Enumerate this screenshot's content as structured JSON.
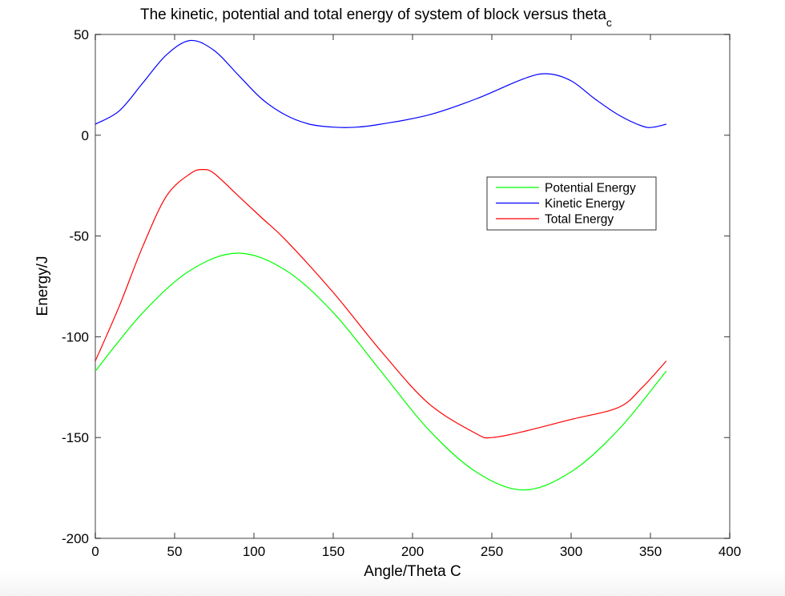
{
  "chart_data": {
    "type": "line",
    "title": "The kinetic, potential and total energy of system of block versus theta",
    "title_subscript": "c",
    "xlabel": "Angle/Theta C",
    "ylabel": "Energy/J",
    "xlim": [
      0,
      400
    ],
    "ylim": [
      -200,
      50
    ],
    "xticks": [
      0,
      50,
      100,
      150,
      200,
      250,
      300,
      350,
      400
    ],
    "yticks": [
      50,
      0,
      -50,
      -100,
      -150,
      -200
    ],
    "grid": false,
    "legend_position": "upper right (inside axes)",
    "series": [
      {
        "name": "Potential Energy",
        "color": "#00ff00",
        "x": [
          0,
          30,
          60,
          90,
          120,
          150,
          180,
          210,
          240,
          270,
          300,
          330,
          360
        ],
        "y": [
          -117,
          -88,
          -67,
          -58.5,
          -67,
          -88,
          -117,
          -146,
          -167,
          -176,
          -167,
          -146,
          -117
        ]
      },
      {
        "name": "Kinetic Energy",
        "color": "#0000ff",
        "x": [
          0,
          15,
          30,
          45,
          60,
          75,
          90,
          105,
          120,
          135,
          150,
          165,
          180,
          210,
          240,
          270,
          285,
          300,
          315,
          330,
          345,
          352,
          360
        ],
        "y": [
          5.5,
          12,
          26,
          40,
          47,
          42,
          30,
          18,
          10,
          5.5,
          4,
          4,
          5.5,
          10,
          18,
          28,
          30.5,
          27,
          18,
          10,
          4.5,
          4,
          5.5
        ]
      },
      {
        "name": "Total Energy",
        "color": "#ff0000",
        "x": [
          0,
          15,
          30,
          45,
          60,
          68,
          75,
          90,
          105,
          120,
          150,
          180,
          210,
          240,
          250,
          270,
          300,
          330,
          345,
          360
        ],
        "y": [
          -112,
          -85,
          -55,
          -30,
          -19,
          -17,
          -19,
          -30,
          -41,
          -52,
          -78,
          -107,
          -133,
          -148,
          -150,
          -147,
          -141,
          -135,
          -125,
          -112
        ]
      }
    ]
  },
  "legend": {
    "items": [
      {
        "label": "Potential Energy",
        "color": "#00ff00"
      },
      {
        "label": "Kinetic Energy",
        "color": "#0000ff"
      },
      {
        "label": "Total Energy",
        "color": "#ff0000"
      }
    ]
  },
  "labels": {
    "title": "The kinetic, potential and total energy of system of block versus theta",
    "title_subscript": "c",
    "xlabel": "Angle/Theta C",
    "ylabel": "Energy/J"
  }
}
